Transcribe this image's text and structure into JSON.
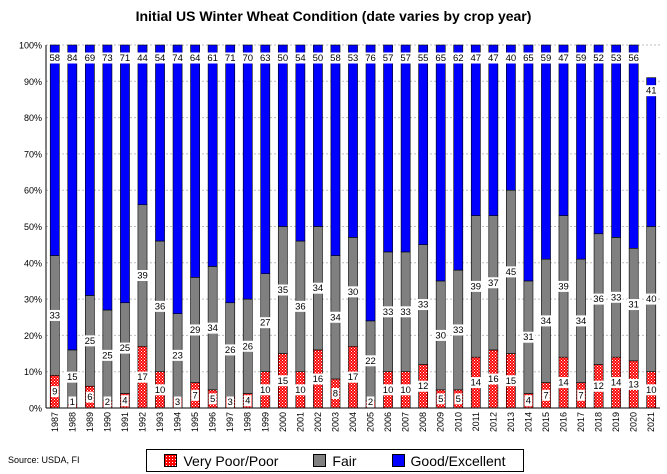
{
  "chart_data": {
    "type": "bar",
    "stacked": true,
    "title": "Initial US Winter Wheat Condition (date varies by crop year)",
    "source": "Source: USDA, FI",
    "ylim": [
      0,
      100
    ],
    "yticks": [
      "0%",
      "10%",
      "20%",
      "30%",
      "40%",
      "50%",
      "60%",
      "70%",
      "80%",
      "90%",
      "100%"
    ],
    "grid": true,
    "legend_position": "bottom",
    "categories": [
      "1987",
      "1988",
      "1989",
      "1990",
      "1991",
      "1992",
      "1993",
      "1994",
      "1995",
      "1996",
      "1997",
      "1998",
      "1999",
      "2000",
      "2001",
      "2002",
      "2003",
      "2004",
      "2005",
      "2006",
      "2007",
      "2008",
      "2009",
      "2010",
      "2011",
      "2012",
      "2013",
      "2014",
      "2015",
      "2016",
      "2017",
      "2018",
      "2019",
      "2020",
      "2021"
    ],
    "series": [
      {
        "name": "Very Poor/Poor",
        "color": "#ff0000",
        "pattern": "dotted-red",
        "values": [
          9,
          1,
          6,
          2,
          4,
          17,
          10,
          3,
          7,
          5,
          3,
          4,
          10,
          15,
          10,
          16,
          8,
          17,
          2,
          10,
          10,
          12,
          5,
          5,
          14,
          16,
          15,
          4,
          7,
          14,
          7,
          12,
          14,
          13,
          10
        ]
      },
      {
        "name": "Fair",
        "color": "#808080",
        "values": [
          33,
          15,
          25,
          25,
          25,
          39,
          36,
          23,
          29,
          34,
          26,
          26,
          27,
          35,
          36,
          34,
          34,
          30,
          22,
          33,
          33,
          33,
          30,
          33,
          39,
          37,
          45,
          31,
          34,
          39,
          34,
          36,
          33,
          31,
          40
        ]
      },
      {
        "name": "Good/Excellent",
        "color": "#0000ff",
        "values": [
          58,
          84,
          69,
          73,
          71,
          44,
          54,
          74,
          64,
          61,
          71,
          70,
          63,
          50,
          54,
          50,
          58,
          53,
          76,
          57,
          57,
          55,
          65,
          62,
          47,
          47,
          40,
          65,
          59,
          47,
          59,
          52,
          53,
          56,
          41
        ]
      }
    ]
  }
}
